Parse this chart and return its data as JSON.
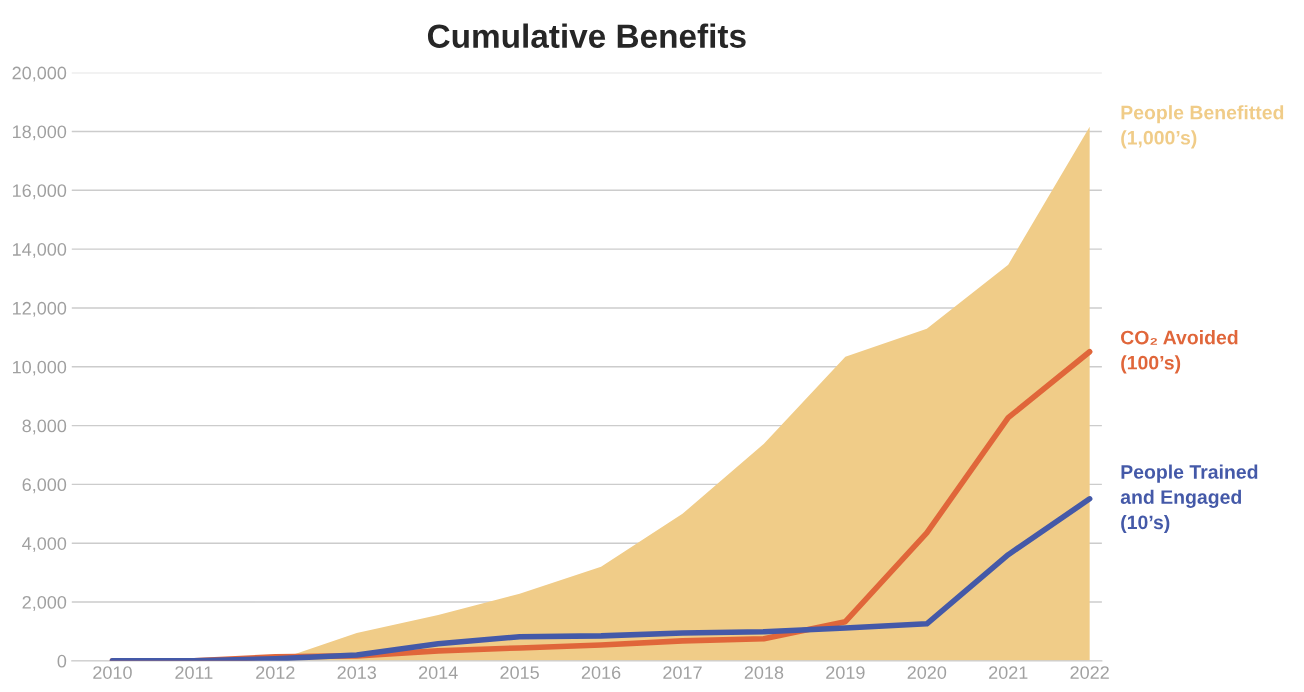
{
  "chart_data": {
    "type": "line",
    "title": "Cumulative Benefits",
    "x": [
      2010,
      2011,
      2012,
      2013,
      2014,
      2015,
      2016,
      2017,
      2018,
      2019,
      2020,
      2021,
      2022
    ],
    "series": [
      {
        "name": "People Benefitted\n(1,000’s)",
        "type": "area",
        "color": "#f0cc88",
        "values": [
          0,
          0,
          0,
          950,
          1560,
          2280,
          3200,
          5000,
          7380,
          10340,
          11290,
          13470,
          18160
        ]
      },
      {
        "name": "CO₂ Avoided\n(100’s)",
        "color": "#e0663a",
        "values": [
          0,
          0,
          140,
          170,
          340,
          440,
          540,
          680,
          750,
          1330,
          4350,
          8270,
          10510
        ]
      },
      {
        "name": "People Trained\nand Engaged\n(10’s)",
        "color": "#4459a8",
        "values": [
          0,
          0,
          70,
          200,
          580,
          820,
          850,
          950,
          990,
          1120,
          1260,
          3610,
          5510
        ]
      }
    ],
    "xlim": [
      2009.5,
      2022.15
    ],
    "xticks": [
      2010,
      2011,
      2012,
      2013,
      2014,
      2015,
      2016,
      2017,
      2018,
      2019,
      2020,
      2021,
      2022
    ],
    "ylim": [
      0,
      20000
    ],
    "yticks": [
      0,
      {
        "value": 2000,
        "label": "2,000"
      },
      {
        "value": 4000,
        "label": "4,000"
      },
      {
        "value": 6000,
        "label": "6,000"
      },
      {
        "value": 8000,
        "label": "8,000"
      },
      {
        "value": 10000,
        "label": "10,000"
      },
      {
        "value": 12000,
        "label": "12,000"
      },
      {
        "value": 14000,
        "label": "14,000"
      },
      {
        "value": 16000,
        "label": "16,000"
      },
      {
        "value": 18000,
        "label": "18,000"
      },
      {
        "value": 20000,
        "label": "20,000"
      }
    ],
    "grid": "y",
    "legend": false
  }
}
